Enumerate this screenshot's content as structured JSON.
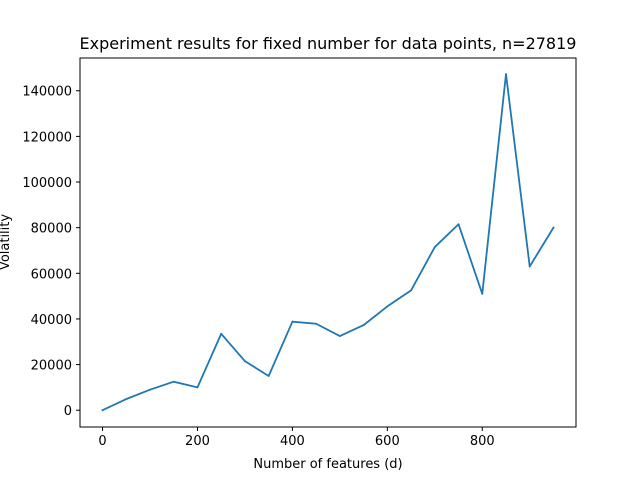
{
  "chart_data": {
    "type": "line",
    "title": "Experiment results for fixed number for data points, n=27819",
    "xlabel": "Number of features (d)",
    "ylabel": "Volatility",
    "xlim": [
      -47.5,
      997.5
    ],
    "ylim": [
      -7350,
      154350
    ],
    "xticks": [
      0,
      200,
      400,
      600,
      800
    ],
    "xtick_labels": [
      "0",
      "200",
      "400",
      "600",
      "800"
    ],
    "yticks": [
      0,
      20000,
      40000,
      60000,
      80000,
      100000,
      120000,
      140000
    ],
    "ytick_labels": [
      "0",
      "20000",
      "40000",
      "60000",
      "80000",
      "100000",
      "120000",
      "140000"
    ],
    "grid": false,
    "series": [
      {
        "name": "volatility",
        "color": "#1f77b4",
        "x": [
          0,
          50,
          100,
          150,
          200,
          250,
          300,
          350,
          400,
          450,
          500,
          550,
          600,
          650,
          700,
          750,
          800,
          850,
          900,
          950
        ],
        "y": [
          0,
          4900,
          9000,
          12500,
          10000,
          33500,
          21500,
          15000,
          38800,
          37900,
          32500,
          37300,
          45500,
          52500,
          71500,
          81500,
          51000,
          147300,
          63000,
          80000
        ]
      }
    ]
  }
}
